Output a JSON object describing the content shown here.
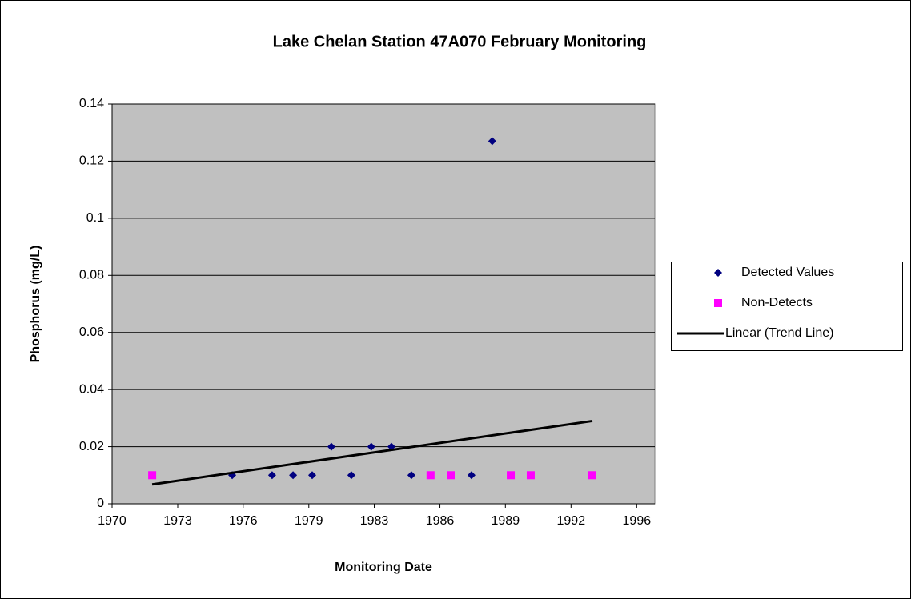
{
  "chart_data": {
    "type": "scatter",
    "title": "Lake Chelan Station 47A070 February Monitoring",
    "x_label": "Monitoring Date",
    "y_label": "Phosphorus (mg/L)",
    "xlim": [
      1970,
      1997.2
    ],
    "xticks": [
      1970,
      {
        "value": 1973.29,
        "label": "1973"
      },
      {
        "value": 1976.57,
        "label": "1976"
      },
      {
        "value": 1979.86,
        "label": "1979"
      },
      {
        "value": 1983.14,
        "label": "1983"
      },
      {
        "value": 1986.43,
        "label": "1986"
      },
      {
        "value": 1989.71,
        "label": "1989"
      },
      {
        "value": 1993.0,
        "label": "1992"
      },
      {
        "value": 1996.29,
        "label": "1996"
      }
    ],
    "ylim": [
      0,
      0.14
    ],
    "yticks": [
      0,
      0.02,
      0.04,
      0.06,
      0.08,
      0.1,
      0.12,
      0.14
    ],
    "grid": true,
    "legend": "right",
    "series": [
      {
        "name": "Detected Values",
        "color": "#000080",
        "marker": "diamond",
        "x": [
          1976.02,
          1978.02,
          1979.07,
          1980.03,
          1980.99,
          1981.99,
          1982.99,
          1984.0,
          1985.0,
          1988.01,
          1989.05
        ],
        "values": [
          0.01,
          0.01,
          0.01,
          0.01,
          0.02,
          0.01,
          0.02,
          0.02,
          0.01,
          0.01,
          0.127
        ]
      },
      {
        "name": "Non-Detects",
        "color": "#ff00ff",
        "marker": "square",
        "x": [
          1972.01,
          1985.96,
          1986.97,
          1989.98,
          1990.98,
          1994.03
        ],
        "values": [
          0.01,
          0.01,
          0.01,
          0.01,
          0.01,
          0.01
        ]
      },
      {
        "name": "Linear (Trend Line)",
        "color": "#000000",
        "marker": "line",
        "x": [
          1972.01,
          1994.07
        ],
        "values": [
          0.0068,
          0.029
        ]
      }
    ]
  }
}
